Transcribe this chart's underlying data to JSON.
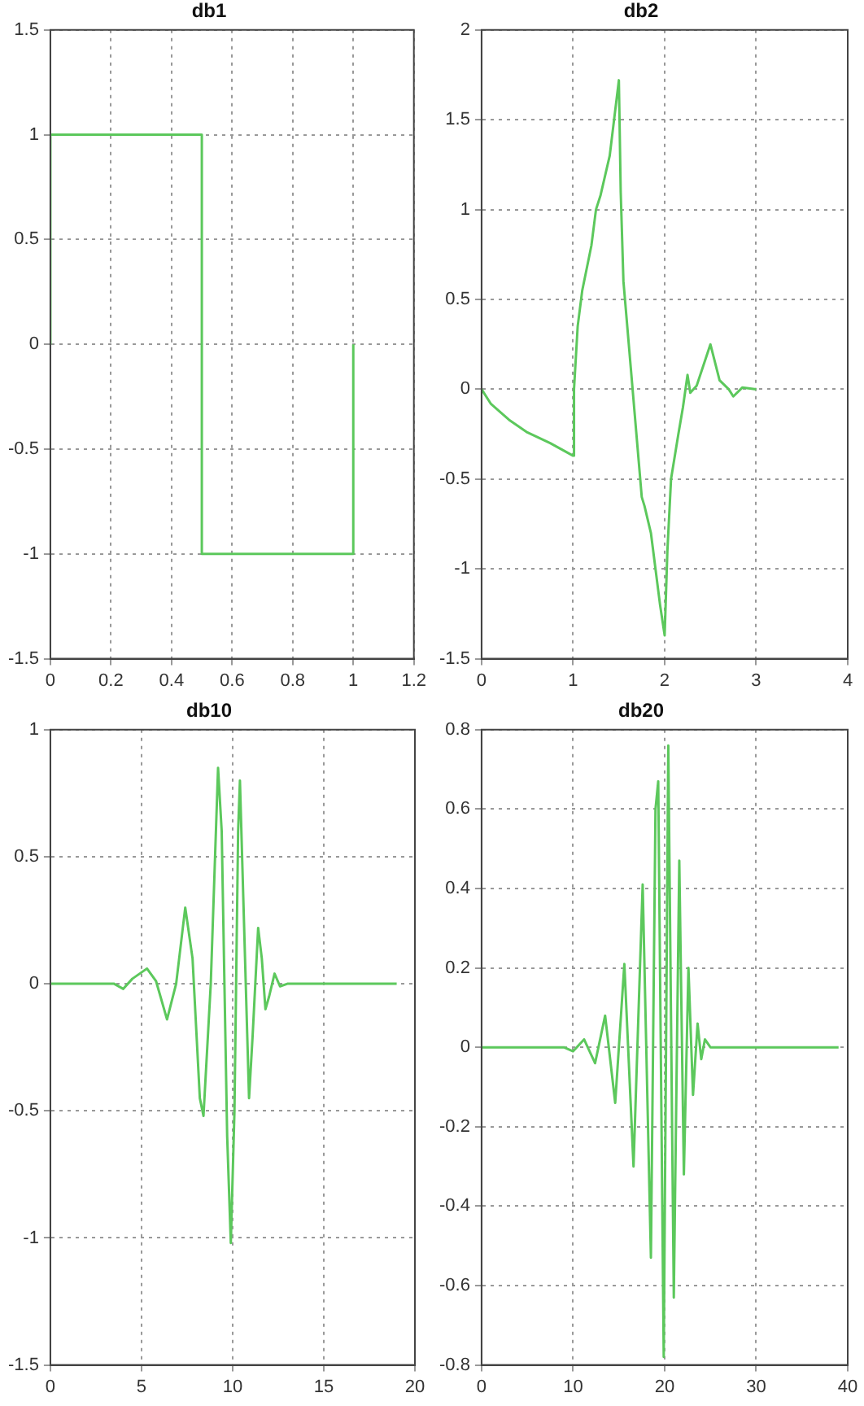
{
  "chart_data": [
    {
      "type": "line",
      "title": "db1",
      "xlim": [
        0,
        1.2
      ],
      "xticks": [
        0,
        0.2,
        0.4,
        0.6,
        0.8,
        1,
        1.2
      ],
      "ylim": [
        -1.5,
        1.5
      ],
      "yticks": [
        -1.5,
        -1,
        -0.5,
        0,
        0.5,
        1,
        1.5
      ],
      "grid": true,
      "marker": "none",
      "line_style": "solid",
      "series": [
        {
          "color": "#5cc85c",
          "x": [
            0,
            0,
            0.5,
            0.5,
            1,
            1
          ],
          "values": [
            0,
            1,
            1,
            -1,
            -1,
            0
          ]
        }
      ]
    },
    {
      "type": "line",
      "title": "db2",
      "xlim": [
        0,
        4
      ],
      "xticks": [
        0,
        1,
        2,
        3,
        4
      ],
      "ylim": [
        -1.5,
        2
      ],
      "yticks": [
        -1.5,
        -1,
        -0.5,
        0,
        0.5,
        1,
        1.5,
        2
      ],
      "grid": true,
      "marker": "none",
      "line_style": "solid",
      "series": [
        {
          "color": "#5cc85c",
          "x": [
            0,
            0.1,
            0.3,
            0.5,
            0.75,
            1,
            1.01,
            1.05,
            1.1,
            1.2,
            1.25,
            1.3,
            1.4,
            1.5,
            1.52,
            1.55,
            1.65,
            1.75,
            1.78,
            1.85,
            1.95,
            2,
            2.03,
            2.07,
            2.15,
            2.2,
            2.25,
            2.28,
            2.35,
            2.5,
            2.6,
            2.7,
            2.75,
            2.85,
            3
          ],
          "values": [
            0,
            -0.08,
            -0.17,
            -0.24,
            -0.3,
            -0.37,
            0,
            0.35,
            0.55,
            0.8,
            1,
            1.08,
            1.3,
            1.72,
            1.1,
            0.6,
            0,
            -0.6,
            -0.65,
            -0.8,
            -1.2,
            -1.37,
            -0.9,
            -0.5,
            -0.25,
            -0.1,
            0.08,
            -0.02,
            0.02,
            0.25,
            0.05,
            0,
            -0.04,
            0.01,
            0
          ]
        }
      ]
    },
    {
      "type": "line",
      "title": "db10",
      "xlim": [
        0,
        20
      ],
      "xticks": [
        0,
        5,
        10,
        15,
        20
      ],
      "ylim": [
        -1.5,
        1
      ],
      "yticks": [
        -1.5,
        -1,
        -0.5,
        0,
        0.5,
        1
      ],
      "grid": true,
      "marker": "none",
      "line_style": "solid",
      "series": [
        {
          "color": "#5cc85c",
          "x": [
            0,
            3.5,
            4,
            4.5,
            5.3,
            5.8,
            6.4,
            6.9,
            7.4,
            7.8,
            8.2,
            8.4,
            8.8,
            9.2,
            9.4,
            9.7,
            9.9,
            10.1,
            10.3,
            10.4,
            10.6,
            10.9,
            11.1,
            11.4,
            11.6,
            11.8,
            12,
            12.3,
            12.6,
            13,
            19
          ],
          "values": [
            0,
            0,
            -0.02,
            0.02,
            0.06,
            0.01,
            -0.14,
            0,
            0.3,
            0.1,
            -0.45,
            -0.52,
            0,
            0.85,
            0.6,
            -0.6,
            -1.02,
            -0.5,
            0.6,
            0.8,
            0.3,
            -0.45,
            -0.2,
            0.22,
            0.1,
            -0.1,
            -0.05,
            0.04,
            -0.01,
            0,
            0
          ]
        }
      ]
    },
    {
      "type": "line",
      "title": "db20",
      "xlim": [
        0,
        40
      ],
      "xticks": [
        0,
        10,
        20,
        30,
        40
      ],
      "ylim": [
        -0.8,
        0.8
      ],
      "yticks": [
        -0.8,
        -0.6,
        -0.4,
        -0.2,
        0,
        0.2,
        0.4,
        0.6,
        0.8
      ],
      "grid": true,
      "marker": "none",
      "line_style": "solid",
      "series": [
        {
          "color": "#5cc85c",
          "x": [
            0,
            9,
            10,
            11.2,
            12.4,
            13.5,
            14.6,
            15.6,
            16.6,
            17.6,
            18.5,
            19,
            19.3,
            19.9,
            20.4,
            21,
            21.6,
            22.1,
            22.6,
            23.1,
            23.6,
            24,
            24.4,
            25,
            39
          ],
          "values": [
            0,
            0,
            -0.01,
            0.02,
            -0.04,
            0.08,
            -0.14,
            0.21,
            -0.3,
            0.41,
            -0.53,
            0.6,
            0.67,
            -0.78,
            0.76,
            -0.63,
            0.47,
            -0.32,
            0.2,
            -0.12,
            0.06,
            -0.03,
            0.02,
            0,
            0
          ]
        }
      ]
    }
  ]
}
